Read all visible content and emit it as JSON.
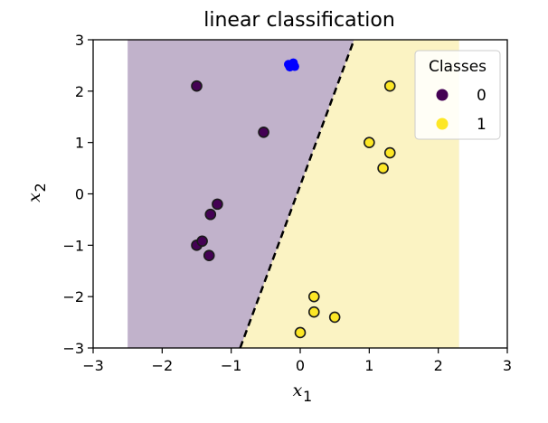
{
  "chart_data": {
    "type": "scatter",
    "title": "linear classification",
    "xlabel": "x1",
    "ylabel": "x2",
    "xlim": [
      -3,
      3
    ],
    "ylim": [
      -3,
      3
    ],
    "x_ticks": [
      -3,
      -2,
      -1,
      0,
      1,
      2,
      3
    ],
    "y_ticks": [
      -3,
      -2,
      -1,
      0,
      1,
      2,
      3
    ],
    "x_tick_labels": [
      "−3",
      "−2",
      "−1",
      "0",
      "1",
      "2",
      "3"
    ],
    "y_tick_labels": [
      "−3",
      "−2",
      "−1",
      "0",
      "1",
      "2",
      "3"
    ],
    "regions": {
      "x_range": [
        -2.5,
        2.3
      ],
      "class0_color": "#c1b2cb",
      "class1_color": "#fbf3c3"
    },
    "decision_boundary": {
      "style": "dashed",
      "color": "#000000",
      "points": [
        [
          -0.87,
          -3
        ],
        [
          0.78,
          3
        ]
      ]
    },
    "legend": {
      "title": "Classes",
      "position": "top-right",
      "entries": [
        {
          "label": "0",
          "color": "#440154"
        },
        {
          "label": "1",
          "color": "#fde725"
        }
      ]
    },
    "series": [
      {
        "name": "0",
        "color": "#440154",
        "points": [
          [
            -1.5,
            2.1
          ],
          [
            -0.53,
            1.2
          ],
          [
            -1.2,
            -0.2
          ],
          [
            -1.3,
            -0.4
          ],
          [
            -1.5,
            -1.0
          ],
          [
            -1.42,
            -0.92
          ],
          [
            -1.32,
            -1.2
          ]
        ]
      },
      {
        "name": "1",
        "color": "#fde725",
        "points": [
          [
            1.3,
            2.1
          ],
          [
            1.0,
            1.0
          ],
          [
            1.3,
            0.8
          ],
          [
            1.2,
            0.5
          ],
          [
            0.2,
            -2.0
          ],
          [
            0.2,
            -2.3
          ],
          [
            0.5,
            -2.4
          ],
          [
            0.0,
            -2.7
          ]
        ]
      }
    ],
    "highlight_points": {
      "color": "#0000ff",
      "points": [
        [
          -0.17,
          2.52
        ],
        [
          -0.12,
          2.52
        ],
        [
          -0.08,
          2.48
        ],
        [
          -0.15,
          2.47
        ],
        [
          -0.1,
          2.55
        ]
      ]
    }
  }
}
